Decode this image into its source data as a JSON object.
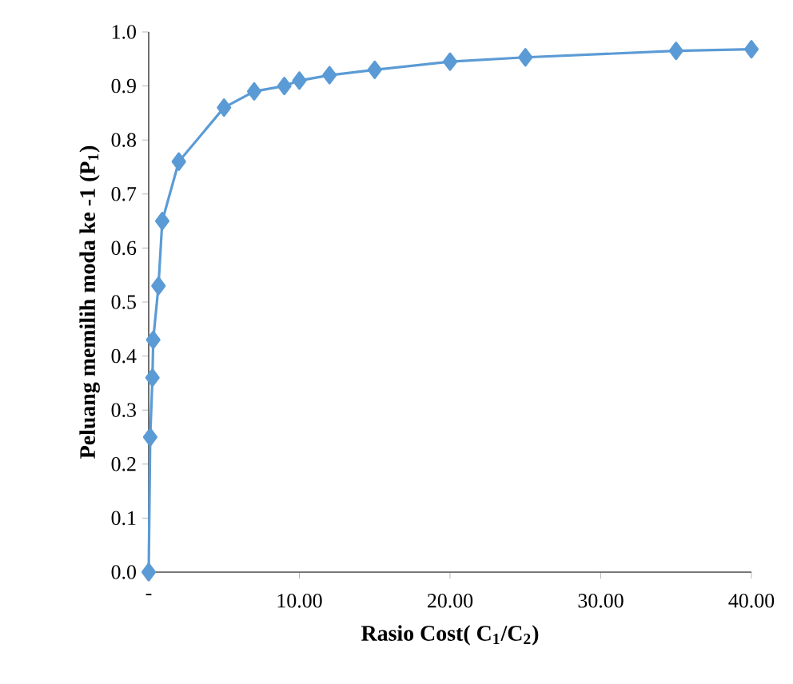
{
  "chart_data": {
    "type": "line",
    "xlabel": "Rasio Cost( C$_{1}$/C$_{2}$)",
    "ylabel": "Peluang memilih moda ke -1 (P$_{1}$)",
    "series": [
      {
        "color": "#5b9bd5",
        "x": [
          0,
          0.1,
          0.25,
          0.3,
          0.65,
          0.9,
          2,
          5,
          7,
          9,
          10,
          12,
          15,
          20,
          25,
          35,
          40
        ],
        "values": [
          0.0,
          0.25,
          0.36,
          0.43,
          0.53,
          0.65,
          0.76,
          0.86,
          0.89,
          0.9,
          0.91,
          0.92,
          0.93,
          0.945,
          0.953,
          0.965,
          0.968
        ]
      }
    ],
    "xlim": [
      0,
      40
    ],
    "xticks": [
      {
        "value": 0,
        "label": "-"
      },
      {
        "value": 10,
        "label": "10.00"
      },
      {
        "value": 20,
        "label": "20.00"
      },
      {
        "value": 30,
        "label": "30.00"
      },
      {
        "value": 40,
        "label": "40.00"
      }
    ],
    "ylim": [
      0,
      1
    ],
    "yticks": [
      {
        "value": 0,
        "label": "0.0"
      },
      {
        "value": 0.1,
        "label": "0.1"
      },
      {
        "value": 0.2,
        "label": "0.2"
      },
      {
        "value": 0.3,
        "label": "0.3"
      },
      {
        "value": 0.4,
        "label": "0.4"
      },
      {
        "value": 0.5,
        "label": "0.5"
      },
      {
        "value": 0.6,
        "label": "0.6"
      },
      {
        "value": 0.7,
        "label": "0.7"
      },
      {
        "value": 0.8,
        "label": "0.8"
      },
      {
        "value": 0.9,
        "label": "0.9"
      },
      {
        "value": 1.0,
        "label": "1.0"
      }
    ],
    "marker": "diamond",
    "line_style": "solid"
  }
}
